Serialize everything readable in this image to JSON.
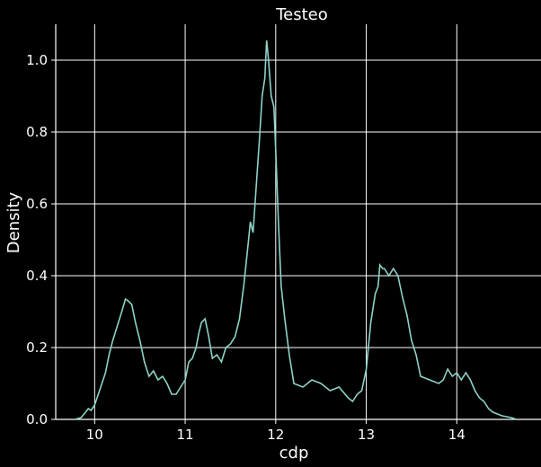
{
  "chart_data": {
    "type": "line",
    "title": "Testeo",
    "xlabel": "cdp",
    "ylabel": "Density",
    "xlim": [
      9.57,
      14.93
    ],
    "ylim": [
      0.0,
      1.1
    ],
    "xticks": [
      10,
      11,
      12,
      13,
      14
    ],
    "yticks": [
      0.0,
      0.2,
      0.4,
      0.6,
      0.8,
      1.0
    ],
    "grid": true,
    "background_color": "#000000",
    "line_color": "#8dd3c7",
    "axes_color": "#ffffff",
    "series": [
      {
        "x": [
          9.78,
          9.85,
          9.9,
          9.93,
          9.96,
          10.0,
          10.04,
          10.08,
          10.12,
          10.16,
          10.2,
          10.25,
          10.3,
          10.34,
          10.37,
          10.41,
          10.45,
          10.5,
          10.55,
          10.6,
          10.65,
          10.7,
          10.75,
          10.8,
          10.85,
          10.9,
          10.95,
          11.0,
          11.04,
          11.08,
          11.12,
          11.15,
          11.18,
          11.22,
          11.26,
          11.3,
          11.35,
          11.4,
          11.45,
          11.5,
          11.55,
          11.6,
          11.65,
          11.7,
          11.72,
          11.75,
          11.78,
          11.82,
          11.85,
          11.88,
          11.9,
          11.92,
          11.95,
          11.98,
          12.0,
          12.03,
          12.06,
          12.1,
          12.15,
          12.2,
          12.3,
          12.4,
          12.5,
          12.6,
          12.7,
          12.8,
          12.85,
          12.9,
          12.95,
          13.0,
          13.05,
          13.1,
          13.13,
          13.15,
          13.18,
          13.2,
          13.25,
          13.3,
          13.35,
          13.4,
          13.45,
          13.5,
          13.55,
          13.6,
          13.7,
          13.8,
          13.85,
          13.9,
          13.95,
          14.0,
          14.05,
          14.1,
          14.15,
          14.2,
          14.25,
          14.3,
          14.35,
          14.4,
          14.5,
          14.6,
          14.66
        ],
        "y": [
          0.0,
          0.005,
          0.02,
          0.03,
          0.025,
          0.04,
          0.07,
          0.1,
          0.13,
          0.18,
          0.22,
          0.26,
          0.3,
          0.335,
          0.33,
          0.32,
          0.27,
          0.22,
          0.16,
          0.12,
          0.135,
          0.11,
          0.12,
          0.1,
          0.07,
          0.07,
          0.09,
          0.11,
          0.16,
          0.17,
          0.2,
          0.24,
          0.27,
          0.28,
          0.23,
          0.17,
          0.18,
          0.16,
          0.2,
          0.21,
          0.23,
          0.28,
          0.38,
          0.5,
          0.55,
          0.52,
          0.63,
          0.78,
          0.9,
          0.95,
          1.055,
          1.0,
          0.9,
          0.87,
          0.75,
          0.55,
          0.37,
          0.28,
          0.18,
          0.1,
          0.09,
          0.11,
          0.1,
          0.08,
          0.09,
          0.06,
          0.05,
          0.07,
          0.08,
          0.14,
          0.27,
          0.35,
          0.37,
          0.43,
          0.42,
          0.42,
          0.4,
          0.42,
          0.4,
          0.34,
          0.29,
          0.22,
          0.18,
          0.12,
          0.11,
          0.1,
          0.11,
          0.14,
          0.12,
          0.13,
          0.11,
          0.13,
          0.11,
          0.08,
          0.06,
          0.05,
          0.03,
          0.02,
          0.01,
          0.005,
          0.0
        ]
      }
    ]
  }
}
